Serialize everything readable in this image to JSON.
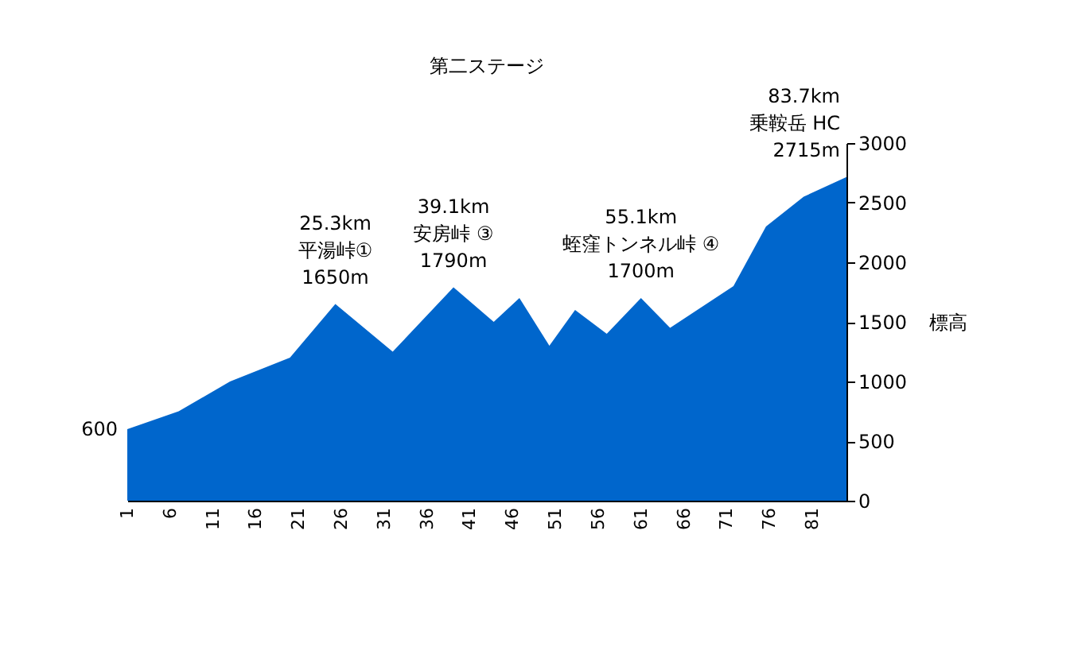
{
  "chart_data": {
    "type": "area",
    "title": "第二ステージ",
    "ylabel": "標高",
    "x": [
      1,
      7,
      13,
      20,
      25.3,
      32,
      39.1,
      43.8,
      46.8,
      50.3,
      53.3,
      57,
      61,
      64.4,
      71.8,
      75.6,
      80,
      85
    ],
    "series": [
      {
        "color": "#0066cc",
        "values": [
          600,
          750,
          1000,
          1200,
          1650,
          1250,
          1790,
          1500,
          1700,
          1300,
          1600,
          1400,
          1700,
          1450,
          1800,
          2300,
          2550,
          2715
        ]
      }
    ],
    "xlim": [
      1,
      85
    ],
    "xticks": [
      1,
      6,
      11,
      16,
      21,
      26,
      31,
      36,
      41,
      46,
      51,
      56,
      61,
      66,
      71,
      76,
      81
    ],
    "ylim": [
      0,
      3000
    ],
    "yticks": [
      0,
      500,
      1000,
      1500,
      2000,
      2500,
      3000
    ],
    "annotations": [
      {
        "text": "600",
        "x": 1,
        "y": 600
      },
      {
        "text": "25.3km\n平湯峠①\n1650m",
        "x": 25.3,
        "y": 1650
      },
      {
        "text": "39.1km\n安房峠 ③\n1790m",
        "x": 39.1,
        "y": 1790
      },
      {
        "text": "55.1km\n蛭窪トンネル峠 ④\n1700m",
        "x": 61,
        "y": 1700
      },
      {
        "text": "83.7km\n乗鞍岳 HC\n2715m",
        "x": 85,
        "y": 2715
      }
    ]
  }
}
